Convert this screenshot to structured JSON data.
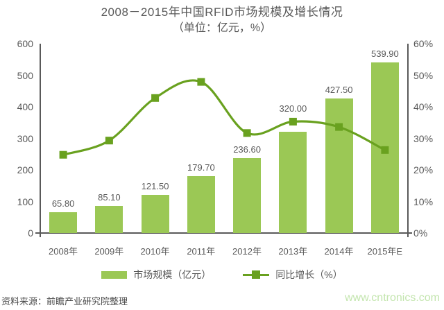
{
  "title": "2008－2015年中国RFID市场规模及增长情况",
  "subtitle": "（单位：亿元，%）",
  "source_note": "资料来源：前瞻产业研究院整理",
  "watermark": "www.cntronics.com",
  "colors": {
    "bar": "#9BC855",
    "line": "#69A11F",
    "axis": "#595959",
    "text": "#595959",
    "source_text": "#4a4a4a",
    "watermark_text": "#c3e5ae"
  },
  "legend": {
    "bar_label": "市场规模（亿元）",
    "line_label": "同比增长（%）"
  },
  "chart_data": {
    "type": "bar",
    "subtype": "bar+line combo",
    "title": "2008－2015年中国RFID市场规模及增长情况",
    "subtitle_units": "（单位：亿元，%）",
    "categories": [
      "2008年",
      "2009年",
      "2010年",
      "2011年",
      "2012年",
      "2013年",
      "2014年",
      "2015年E"
    ],
    "series": [
      {
        "name": "市场规模（亿元）",
        "type": "bar",
        "axis": "left",
        "values": [
          65.8,
          85.1,
          121.5,
          179.7,
          236.6,
          320.0,
          427.5,
          539.9
        ],
        "data_labels": [
          "65.80",
          "85.10",
          "121.50",
          "179.70",
          "236.60",
          "320.00",
          "427.50",
          "539.90"
        ]
      },
      {
        "name": "同比增长（%）",
        "type": "line",
        "axis": "right",
        "values": [
          24.8,
          29.3,
          42.8,
          47.9,
          31.7,
          35.3,
          33.6,
          26.3
        ]
      }
    ],
    "left_axis": {
      "min": 0,
      "max": 600,
      "ticks": [
        "0",
        "100",
        "200",
        "300",
        "400",
        "500",
        "600"
      ]
    },
    "right_axis": {
      "min": 0,
      "max": 60,
      "ticks": [
        "0%",
        "10%",
        "20%",
        "30%",
        "40%",
        "50%",
        "60%"
      ]
    },
    "grid": false,
    "legend_position": "bottom"
  }
}
